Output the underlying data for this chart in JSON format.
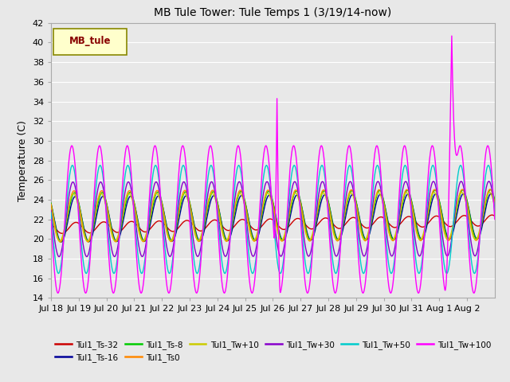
{
  "title": "MB Tule Tower: Tule Temps 1 (3/19/14-now)",
  "ylabel": "Temperature (C)",
  "ylim": [
    14,
    42
  ],
  "yticks": [
    14,
    16,
    18,
    20,
    22,
    24,
    26,
    28,
    30,
    32,
    34,
    36,
    38,
    40,
    42
  ],
  "plot_bg_color": "#e8e8e8",
  "fig_bg_color": "#e8e8e8",
  "series_colors": {
    "Tul1_Ts-32": "#cc0000",
    "Tul1_Ts-16": "#000099",
    "Tul1_Ts-8": "#00cc00",
    "Tul1_Ts0": "#ff8800",
    "Tul1_Tw+10": "#cccc00",
    "Tul1_Tw+30": "#8800cc",
    "Tul1_Tw+50": "#00cccc",
    "Tul1_Tw+100": "#ff00ff"
  },
  "xtick_labels": [
    "Jul 18",
    "Jul 19",
    "Jul 20",
    "Jul 21",
    "Jul 22",
    "Jul 23",
    "Jul 24",
    "Jul 25",
    "Jul 26",
    "Jul 27",
    "Jul 28",
    "Jul 29",
    "Jul 30",
    "Jul 31",
    "Aug 1",
    "Aug 2"
  ]
}
